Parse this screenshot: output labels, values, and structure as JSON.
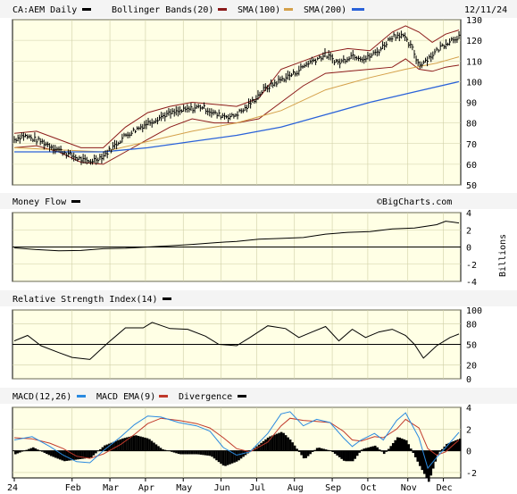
{
  "header": {
    "symbol_label": "CA:AEM Daily",
    "indicators": [
      "Bollinger Bands(20)",
      "SMA(100)",
      "SMA(200)"
    ],
    "date": "12/11/24"
  },
  "colors": {
    "price": "#000000",
    "bollinger": "#8b1a1a",
    "sma100": "#d4a04a",
    "sma200": "#2a62d9",
    "macd": "#2a8ae0",
    "macd_ema": "#c0392b",
    "divergence": "#000000",
    "panel_bg": "#ffffe5"
  },
  "watermark": "©BigCharts.com",
  "x_axis": {
    "months": [
      {
        "label": "24",
        "x": 0.0
      },
      {
        "label": "Feb",
        "x": 0.13
      },
      {
        "label": "Mar",
        "x": 0.215
      },
      {
        "label": "Apr",
        "x": 0.295
      },
      {
        "label": "May",
        "x": 0.38
      },
      {
        "label": "Jun",
        "x": 0.465
      },
      {
        "label": "Jul",
        "x": 0.545
      },
      {
        "label": "Aug",
        "x": 0.63
      },
      {
        "label": "Sep",
        "x": 0.715
      },
      {
        "label": "Oct",
        "x": 0.795
      },
      {
        "label": "Nov",
        "x": 0.885
      },
      {
        "label": "Dec",
        "x": 0.965
      }
    ]
  },
  "chart_data": [
    {
      "type": "ohlc",
      "title": "CA:AEM Daily",
      "ylim": [
        50,
        130
      ],
      "yticks": [
        50,
        60,
        70,
        80,
        90,
        100,
        110,
        120,
        130
      ],
      "price_anchors": [
        [
          0.0,
          72
        ],
        [
          0.02,
          74
        ],
        [
          0.06,
          71
        ],
        [
          0.1,
          67
        ],
        [
          0.13,
          64
        ],
        [
          0.165,
          61
        ],
        [
          0.2,
          64
        ],
        [
          0.215,
          67
        ],
        [
          0.25,
          74
        ],
        [
          0.3,
          80
        ],
        [
          0.34,
          84
        ],
        [
          0.38,
          86
        ],
        [
          0.42,
          88
        ],
        [
          0.455,
          84
        ],
        [
          0.49,
          83
        ],
        [
          0.52,
          87
        ],
        [
          0.56,
          96
        ],
        [
          0.6,
          101
        ],
        [
          0.63,
          104
        ],
        [
          0.66,
          109
        ],
        [
          0.7,
          113
        ],
        [
          0.73,
          109
        ],
        [
          0.76,
          113
        ],
        [
          0.79,
          111
        ],
        [
          0.82,
          115
        ],
        [
          0.85,
          122
        ],
        [
          0.87,
          123
        ],
        [
          0.895,
          116
        ],
        [
          0.91,
          108
        ],
        [
          0.935,
          112
        ],
        [
          0.96,
          117
        ],
        [
          0.98,
          120
        ],
        [
          1.0,
          122
        ]
      ],
      "bollinger_upper": [
        [
          0.0,
          75
        ],
        [
          0.05,
          76
        ],
        [
          0.1,
          72
        ],
        [
          0.15,
          68
        ],
        [
          0.2,
          68
        ],
        [
          0.25,
          78
        ],
        [
          0.3,
          85
        ],
        [
          0.35,
          88
        ],
        [
          0.4,
          90
        ],
        [
          0.45,
          89
        ],
        [
          0.5,
          88
        ],
        [
          0.55,
          92
        ],
        [
          0.6,
          106
        ],
        [
          0.65,
          110
        ],
        [
          0.7,
          114
        ],
        [
          0.75,
          116
        ],
        [
          0.8,
          115
        ],
        [
          0.85,
          124
        ],
        [
          0.88,
          127
        ],
        [
          0.91,
          124
        ],
        [
          0.94,
          119
        ],
        [
          0.97,
          123
        ],
        [
          1.0,
          125
        ]
      ],
      "bollinger_lower": [
        [
          0.0,
          68
        ],
        [
          0.05,
          69
        ],
        [
          0.1,
          66
        ],
        [
          0.15,
          61
        ],
        [
          0.2,
          60
        ],
        [
          0.25,
          66
        ],
        [
          0.3,
          72
        ],
        [
          0.35,
          78
        ],
        [
          0.4,
          82
        ],
        [
          0.45,
          80
        ],
        [
          0.5,
          80
        ],
        [
          0.55,
          82
        ],
        [
          0.6,
          90
        ],
        [
          0.65,
          98
        ],
        [
          0.7,
          104
        ],
        [
          0.75,
          105
        ],
        [
          0.8,
          106
        ],
        [
          0.85,
          107
        ],
        [
          0.88,
          111
        ],
        [
          0.91,
          106
        ],
        [
          0.94,
          105
        ],
        [
          0.97,
          107
        ],
        [
          1.0,
          108
        ]
      ],
      "sma100": [
        [
          0.0,
          68
        ],
        [
          0.1,
          67
        ],
        [
          0.2,
          66
        ],
        [
          0.3,
          71
        ],
        [
          0.4,
          76
        ],
        [
          0.5,
          80
        ],
        [
          0.6,
          86
        ],
        [
          0.7,
          96
        ],
        [
          0.8,
          102
        ],
        [
          0.88,
          106
        ],
        [
          0.95,
          109
        ],
        [
          1.0,
          112
        ]
      ],
      "sma200": [
        [
          0.0,
          66
        ],
        [
          0.1,
          66
        ],
        [
          0.2,
          66
        ],
        [
          0.3,
          68
        ],
        [
          0.4,
          71
        ],
        [
          0.5,
          74
        ],
        [
          0.6,
          78
        ],
        [
          0.7,
          84
        ],
        [
          0.8,
          90
        ],
        [
          0.9,
          95
        ],
        [
          1.0,
          100
        ]
      ]
    },
    {
      "type": "line",
      "title": "Money Flow",
      "ylabel": "Billions",
      "ylim": [
        -4,
        4
      ],
      "yticks": [
        -4,
        -2,
        0,
        2,
        4
      ],
      "series": [
        {
          "name": "Money Flow",
          "points": [
            [
              0.0,
              -0.1
            ],
            [
              0.05,
              -0.3
            ],
            [
              0.1,
              -0.45
            ],
            [
              0.15,
              -0.4
            ],
            [
              0.2,
              -0.2
            ],
            [
              0.25,
              -0.15
            ],
            [
              0.3,
              0.0
            ],
            [
              0.35,
              0.15
            ],
            [
              0.4,
              0.3
            ],
            [
              0.45,
              0.5
            ],
            [
              0.5,
              0.65
            ],
            [
              0.55,
              0.9
            ],
            [
              0.6,
              1.0
            ],
            [
              0.65,
              1.1
            ],
            [
              0.7,
              1.5
            ],
            [
              0.75,
              1.7
            ],
            [
              0.8,
              1.8
            ],
            [
              0.85,
              2.1
            ],
            [
              0.9,
              2.2
            ],
            [
              0.95,
              2.6
            ],
            [
              0.97,
              3.0
            ],
            [
              1.0,
              2.8
            ]
          ]
        }
      ]
    },
    {
      "type": "line",
      "title": "Relative Strength Index(14)",
      "ylim": [
        0,
        100
      ],
      "yticks": [
        0,
        20,
        50,
        80,
        100
      ],
      "series": [
        {
          "name": "Relative Strength Index(14)",
          "points": [
            [
              0.0,
              55
            ],
            [
              0.03,
              63
            ],
            [
              0.06,
              48
            ],
            [
              0.1,
              38
            ],
            [
              0.13,
              31
            ],
            [
              0.17,
              28
            ],
            [
              0.21,
              52
            ],
            [
              0.25,
              74
            ],
            [
              0.29,
              74
            ],
            [
              0.31,
              82
            ],
            [
              0.35,
              73
            ],
            [
              0.39,
              72
            ],
            [
              0.43,
              62
            ],
            [
              0.46,
              50
            ],
            [
              0.5,
              48
            ],
            [
              0.53,
              60
            ],
            [
              0.57,
              77
            ],
            [
              0.61,
              73
            ],
            [
              0.64,
              60
            ],
            [
              0.67,
              68
            ],
            [
              0.7,
              76
            ],
            [
              0.73,
              55
            ],
            [
              0.76,
              72
            ],
            [
              0.79,
              60
            ],
            [
              0.82,
              68
            ],
            [
              0.85,
              72
            ],
            [
              0.88,
              63
            ],
            [
              0.9,
              50
            ],
            [
              0.92,
              30
            ],
            [
              0.95,
              48
            ],
            [
              0.98,
              60
            ],
            [
              1.0,
              65
            ]
          ]
        }
      ]
    },
    {
      "type": "line",
      "title": "MACD(12,26)",
      "ylim": [
        -2.5,
        4
      ],
      "yticks": [
        -2,
        0,
        2,
        4
      ],
      "series": [
        {
          "name": "MACD(12,26)",
          "points": [
            [
              0.0,
              1.0
            ],
            [
              0.04,
              1.3
            ],
            [
              0.08,
              0.4
            ],
            [
              0.11,
              -0.4
            ],
            [
              0.14,
              -1.0
            ],
            [
              0.17,
              -1.1
            ],
            [
              0.2,
              0.0
            ],
            [
              0.24,
              1.3
            ],
            [
              0.27,
              2.4
            ],
            [
              0.3,
              3.2
            ],
            [
              0.33,
              3.1
            ],
            [
              0.37,
              2.6
            ],
            [
              0.41,
              2.3
            ],
            [
              0.44,
              1.8
            ],
            [
              0.47,
              0.3
            ],
            [
              0.5,
              -0.4
            ],
            [
              0.53,
              -0.1
            ],
            [
              0.57,
              1.6
            ],
            [
              0.6,
              3.4
            ],
            [
              0.62,
              3.6
            ],
            [
              0.65,
              2.3
            ],
            [
              0.68,
              2.9
            ],
            [
              0.71,
              2.6
            ],
            [
              0.74,
              1.2
            ],
            [
              0.76,
              0.4
            ],
            [
              0.78,
              1.0
            ],
            [
              0.81,
              1.6
            ],
            [
              0.83,
              1.0
            ],
            [
              0.86,
              2.8
            ],
            [
              0.88,
              3.5
            ],
            [
              0.91,
              1.2
            ],
            [
              0.93,
              -1.6
            ],
            [
              0.95,
              -0.6
            ],
            [
              0.97,
              0.3
            ],
            [
              1.0,
              1.7
            ]
          ]
        },
        {
          "name": "MACD EMA(9)",
          "points": [
            [
              0.0,
              1.2
            ],
            [
              0.04,
              1.1
            ],
            [
              0.08,
              0.7
            ],
            [
              0.11,
              0.2
            ],
            [
              0.14,
              -0.5
            ],
            [
              0.17,
              -0.7
            ],
            [
              0.2,
              -0.3
            ],
            [
              0.24,
              0.6
            ],
            [
              0.27,
              1.5
            ],
            [
              0.3,
              2.5
            ],
            [
              0.33,
              3.0
            ],
            [
              0.37,
              2.8
            ],
            [
              0.41,
              2.5
            ],
            [
              0.44,
              2.1
            ],
            [
              0.47,
              1.2
            ],
            [
              0.5,
              0.2
            ],
            [
              0.53,
              -0.1
            ],
            [
              0.57,
              0.8
            ],
            [
              0.6,
              2.3
            ],
            [
              0.62,
              3.0
            ],
            [
              0.65,
              2.8
            ],
            [
              0.68,
              2.7
            ],
            [
              0.71,
              2.6
            ],
            [
              0.74,
              1.8
            ],
            [
              0.76,
              1.0
            ],
            [
              0.78,
              0.9
            ],
            [
              0.81,
              1.3
            ],
            [
              0.83,
              1.2
            ],
            [
              0.86,
              2.0
            ],
            [
              0.88,
              2.9
            ],
            [
              0.91,
              2.1
            ],
            [
              0.93,
              0.2
            ],
            [
              0.95,
              -0.4
            ],
            [
              0.97,
              -0.1
            ],
            [
              1.0,
              1.0
            ]
          ]
        }
      ]
    }
  ]
}
